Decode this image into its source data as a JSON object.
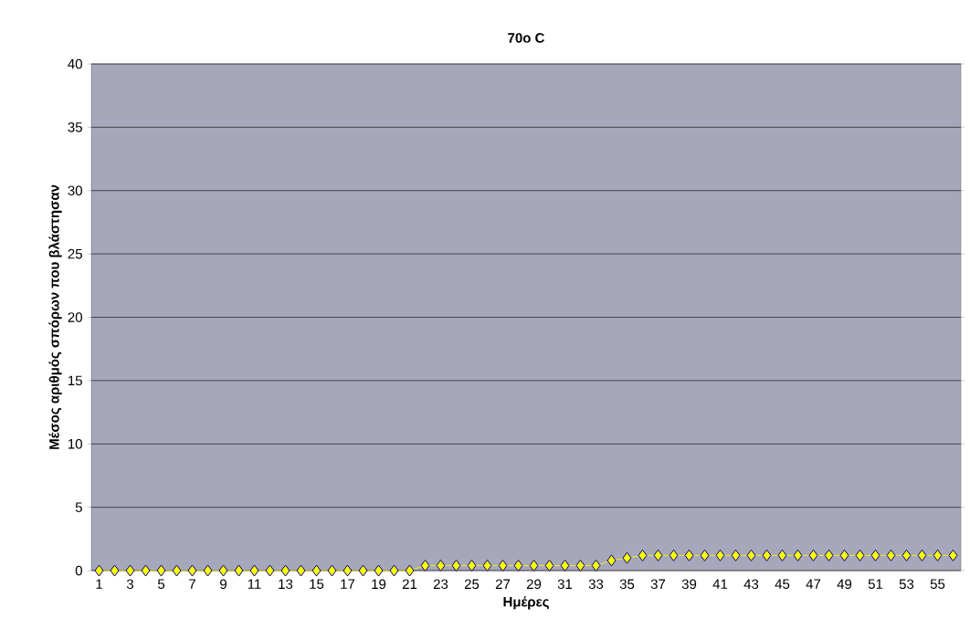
{
  "chart_data": {
    "type": "line",
    "title": "70o C",
    "xlabel": "Ημέρες",
    "ylabel": "Μέσος αριθμός σπόρων που βλάστησαν",
    "categories": [
      "1",
      null,
      "3",
      null,
      "5",
      null,
      "7",
      null,
      "9",
      null,
      "11",
      null,
      "13",
      null,
      "15",
      null,
      "17",
      null,
      "19",
      null,
      "21",
      null,
      "23",
      null,
      "25",
      null,
      "27",
      null,
      "29",
      null,
      "31",
      null,
      "33",
      null,
      "35",
      null,
      "37",
      null,
      "39",
      null,
      "41",
      null,
      "43",
      null,
      "45",
      null,
      "47",
      null,
      "49",
      null,
      "51",
      null,
      "53",
      null,
      "55",
      null
    ],
    "series": [
      {
        "color": "#ffff00",
        "values": [
          0,
          0,
          0,
          0,
          0,
          0,
          0,
          0,
          0,
          0,
          0,
          0,
          0,
          0,
          0,
          0,
          0,
          0,
          0,
          0,
          0,
          0.4,
          0.4,
          0.4,
          0.4,
          0.4,
          0.4,
          0.4,
          0.4,
          0.4,
          0.4,
          0.4,
          0.4,
          0.8,
          1.0,
          1.2,
          1.2,
          1.2,
          1.2,
          1.2,
          1.2,
          1.2,
          1.2,
          1.2,
          1.2,
          1.2,
          1.2,
          1.2,
          1.2,
          1.2,
          1.2,
          1.2,
          1.2,
          1.2,
          1.2,
          1.2
        ]
      }
    ],
    "ylim": [
      0,
      40
    ],
    "yticks": [
      0,
      5,
      10,
      15,
      20,
      25,
      30,
      35,
      40
    ],
    "grid": "y",
    "marker": "diamond",
    "line_style": "solid"
  }
}
